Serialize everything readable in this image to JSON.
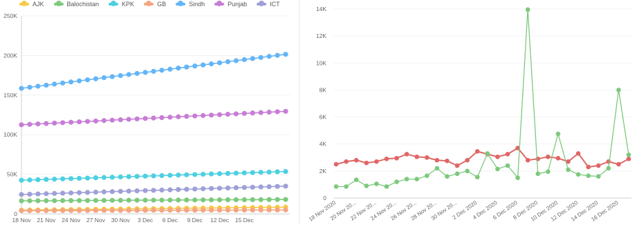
{
  "chart_data": [
    {
      "type": "line",
      "legend_position": "top-left",
      "y_ticks": [
        "0",
        "50K",
        "100K",
        "150K",
        "200K",
        "250K"
      ],
      "ylim": [
        0,
        250000
      ],
      "x_tick_labels": [
        "18 Nov",
        "21 Nov",
        "24 Nov",
        "27 Nov",
        "30 Nov",
        "3 Dec",
        "6 Dec",
        "9 Dec",
        "12 Dec",
        "15 Dec"
      ],
      "x_tick_indices": [
        0,
        3,
        6,
        9,
        12,
        15,
        18,
        21,
        24,
        27
      ],
      "n_points": 33,
      "series": [
        {
          "name": "AJK",
          "color": "#f7c948",
          "start": 4800,
          "end": 8500
        },
        {
          "name": "Balochistan",
          "color": "#7dc97d",
          "start": 16500,
          "end": 18200
        },
        {
          "name": "KPK",
          "color": "#4dd0e1",
          "start": 42500,
          "end": 53500
        },
        {
          "name": "GB",
          "color": "#f4a582",
          "start": 4000,
          "end": 5000
        },
        {
          "name": "Sindh",
          "color": "#64b5f6",
          "start": 158500,
          "end": 201500
        },
        {
          "name": "Punjab",
          "color": "#c77dd6",
          "start": 112500,
          "end": 129500
        },
        {
          "name": "ICT",
          "color": "#9f9fd9",
          "start": 24500,
          "end": 35000
        }
      ]
    },
    {
      "type": "line",
      "y_ticks": [
        "0",
        "2K",
        "4K",
        "6K",
        "8K",
        "10K",
        "12K",
        "14K"
      ],
      "ylim": [
        0,
        14000
      ],
      "x_tick_labels": [
        "18 Nov 2020",
        "20 Nov 20...",
        "22 Nov 20...",
        "24 Nov 20...",
        "26 Nov 20...",
        "28 Nov 20...",
        "30 Nov 20...",
        "2 Dec 2020",
        "4 Dec 2020",
        "6 Dec 2020",
        "8 Dec 2020",
        "10 Dec 2020",
        "12 Dec 2020",
        "14 Dec 2020",
        "16 Dec 2020"
      ],
      "x": [
        "18 Nov 2020",
        "19 Nov 2020",
        "20 Nov 2020",
        "21 Nov 2020",
        "22 Nov 2020",
        "23 Nov 2020",
        "24 Nov 2020",
        "25 Nov 2020",
        "26 Nov 2020",
        "27 Nov 2020",
        "28 Nov 2020",
        "29 Nov 2020",
        "30 Nov 2020",
        "1 Dec 2020",
        "2 Dec 2020",
        "3 Dec 2020",
        "4 Dec 2020",
        "5 Dec 2020",
        "6 Dec 2020",
        "7 Dec 2020",
        "8 Dec 2020",
        "9 Dec 2020",
        "10 Dec 2020",
        "11 Dec 2020",
        "12 Dec 2020",
        "13 Dec 2020",
        "14 Dec 2020",
        "15 Dec 2020",
        "16 Dec 2020",
        "17 Dec 2020"
      ],
      "series": [
        {
          "color": "#e06666",
          "values": [
            2500,
            2700,
            2800,
            2600,
            2700,
            2900,
            2950,
            3250,
            3050,
            3000,
            2800,
            2750,
            2400,
            2800,
            3450,
            3250,
            3050,
            3250,
            3700,
            2800,
            2900,
            3050,
            2950,
            2700,
            3300,
            2300,
            2400,
            2700,
            2500,
            2900
          ]
        },
        {
          "color": "#7dc97d",
          "values": [
            850,
            850,
            1350,
            900,
            1050,
            850,
            1200,
            1400,
            1400,
            1650,
            2200,
            1600,
            1800,
            2000,
            1550,
            3300,
            2150,
            2400,
            1500,
            13950,
            1800,
            1950,
            4750,
            2100,
            1750,
            1650,
            1600,
            2200,
            8000,
            3200
          ]
        }
      ]
    }
  ]
}
